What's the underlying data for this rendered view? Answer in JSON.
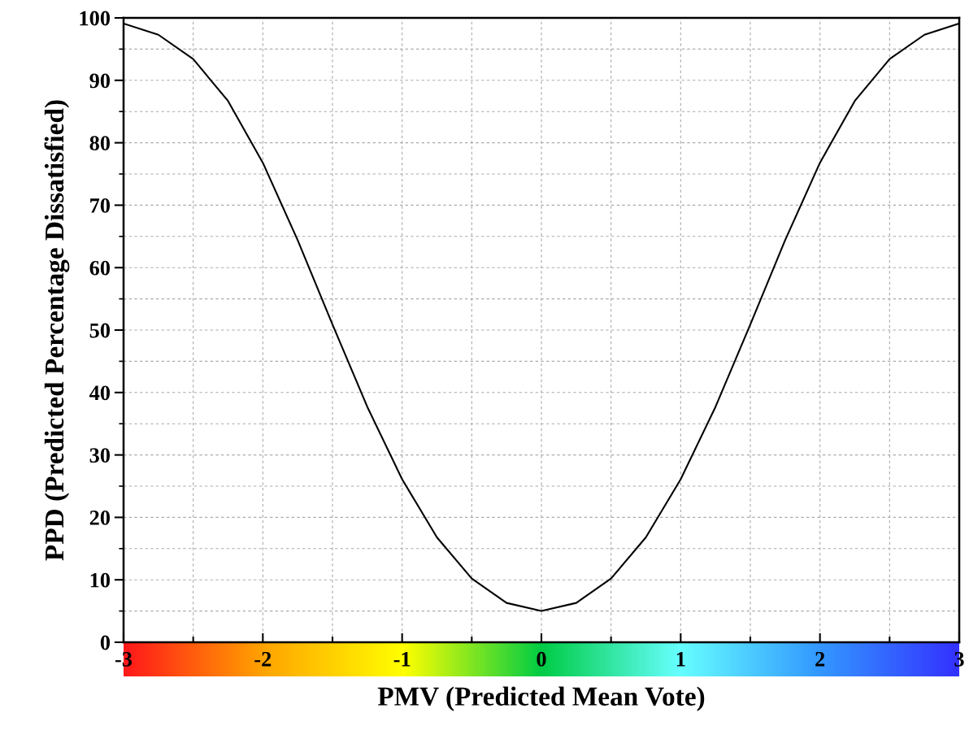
{
  "chart_data": {
    "type": "line",
    "xlabel": "PMV (Predicted Mean Vote)",
    "ylabel": "PPD (Predicted Percentage Dissatisfied)",
    "x": [
      -3,
      -2.75,
      -2.5,
      -2.25,
      -2,
      -1.75,
      -1.5,
      -1.25,
      -1,
      -0.75,
      -0.5,
      -0.25,
      0,
      0.25,
      0.5,
      0.75,
      1,
      1.25,
      1.5,
      1.75,
      2,
      2.25,
      2.5,
      2.75,
      3
    ],
    "series": [
      {
        "color": "#000000",
        "values": [
          99.1,
          97.3,
          93.4,
          86.7,
          76.8,
          64.4,
          50.9,
          37.7,
          26.1,
          16.8,
          10.2,
          6.3,
          5,
          6.3,
          10.2,
          16.8,
          26.1,
          37.7,
          50.9,
          64.4,
          76.8,
          86.7,
          93.4,
          97.3,
          99.1
        ]
      }
    ],
    "xlim": [
      -3,
      3
    ],
    "xticks": [
      -3,
      -2,
      -1,
      0,
      1,
      2,
      3
    ],
    "ylim": [
      0,
      100
    ],
    "yticks": [
      0,
      10,
      20,
      30,
      40,
      50,
      60,
      70,
      80,
      90,
      100
    ],
    "grid": true,
    "marker": "none",
    "line_style": "solid",
    "legend": false
  }
}
